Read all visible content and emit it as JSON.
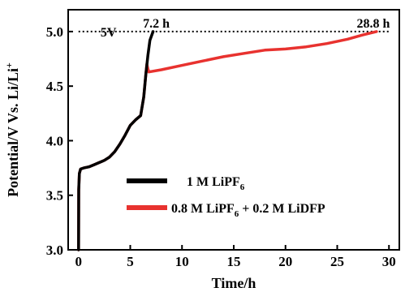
{
  "chart_data": {
    "type": "line",
    "xlabel": "Time/h",
    "ylabel_parts": {
      "main": "Potential/V Vs. Li/Li",
      "sup": "+"
    },
    "xlim": [
      -1,
      31
    ],
    "ylim": [
      3.0,
      5.2
    ],
    "x_ticks": [
      "0",
      "5",
      "10",
      "15",
      "20",
      "25",
      "30"
    ],
    "x_tick_values": [
      0,
      5,
      10,
      15,
      20,
      25,
      30
    ],
    "y_ticks": [
      "3.0",
      "3.5",
      "4.0",
      "4.5",
      "5.0"
    ],
    "y_tick_values": [
      3.0,
      3.5,
      4.0,
      4.5,
      5.0
    ],
    "reference_line": {
      "y": 5.0,
      "style": "dotted",
      "x_range": [
        0,
        30
      ]
    },
    "annotations": [
      {
        "text": "5V",
        "x": 1.5,
        "y": 5.0
      },
      {
        "text": "7.2 h",
        "x": 7.2,
        "y": 5.0
      },
      {
        "text": "28.8 h",
        "x": 28.8,
        "y": 5.0
      }
    ],
    "legend": {
      "placement": "bottom-right",
      "entries": [
        {
          "text": "1 M LiPF",
          "sub": "6",
          "suffix": ""
        },
        {
          "text": "0.8 M LiPF",
          "sub": "6",
          "suffix": " + 0.2 M LiDFP"
        }
      ]
    },
    "series": [
      {
        "color": "#000000",
        "points": [
          [
            0,
            3.0
          ],
          [
            0.02,
            3.55
          ],
          [
            0.08,
            3.7
          ],
          [
            0.2,
            3.74
          ],
          [
            0.5,
            3.75
          ],
          [
            1.0,
            3.76
          ],
          [
            1.5,
            3.78
          ],
          [
            2.0,
            3.8
          ],
          [
            2.5,
            3.82
          ],
          [
            3.0,
            3.85
          ],
          [
            3.5,
            3.9
          ],
          [
            4.0,
            3.97
          ],
          [
            4.5,
            4.05
          ],
          [
            5.0,
            4.14
          ],
          [
            5.5,
            4.19
          ],
          [
            6.0,
            4.23
          ],
          [
            6.3,
            4.4
          ],
          [
            6.5,
            4.6
          ],
          [
            6.7,
            4.78
          ],
          [
            6.9,
            4.92
          ],
          [
            7.2,
            5.0
          ]
        ]
      },
      {
        "color": "#e8322f",
        "points": [
          [
            0,
            3.0
          ],
          [
            0.02,
            3.55
          ],
          [
            0.08,
            3.7
          ],
          [
            0.2,
            3.74
          ],
          [
            0.5,
            3.75
          ],
          [
            1.0,
            3.76
          ],
          [
            1.5,
            3.78
          ],
          [
            2.0,
            3.8
          ],
          [
            2.5,
            3.82
          ],
          [
            3.0,
            3.85
          ],
          [
            3.5,
            3.9
          ],
          [
            4.0,
            3.97
          ],
          [
            4.5,
            4.05
          ],
          [
            5.0,
            4.14
          ],
          [
            5.5,
            4.19
          ],
          [
            6.0,
            4.23
          ],
          [
            6.3,
            4.4
          ],
          [
            6.5,
            4.6
          ],
          [
            6.6,
            4.7
          ],
          [
            6.7,
            4.66
          ],
          [
            6.8,
            4.63
          ],
          [
            8.0,
            4.65
          ],
          [
            10.0,
            4.69
          ],
          [
            12.0,
            4.73
          ],
          [
            14.0,
            4.77
          ],
          [
            16.0,
            4.8
          ],
          [
            18.0,
            4.83
          ],
          [
            20.0,
            4.84
          ],
          [
            22.0,
            4.86
          ],
          [
            24.0,
            4.89
          ],
          [
            26.0,
            4.93
          ],
          [
            27.5,
            4.97
          ],
          [
            28.8,
            5.0
          ]
        ]
      }
    ]
  }
}
